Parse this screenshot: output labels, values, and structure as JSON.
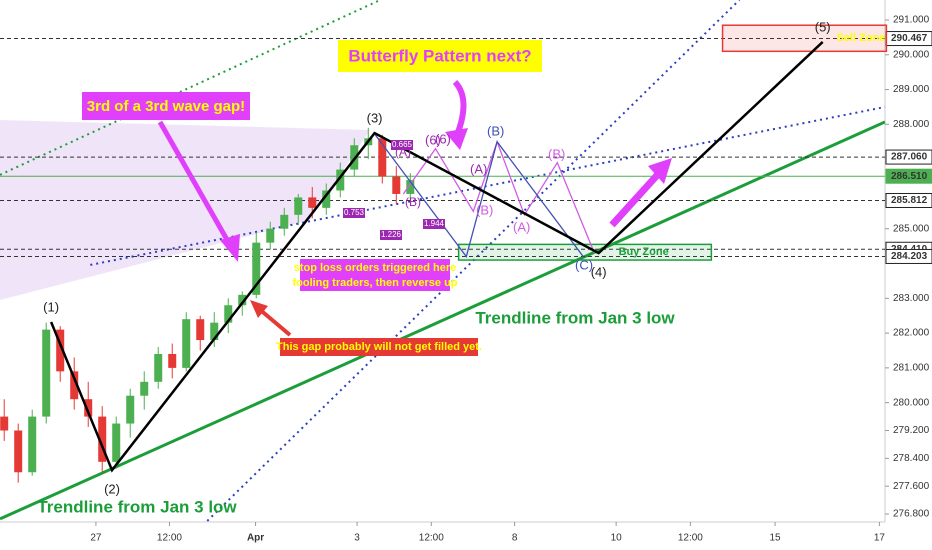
{
  "chart_data": {
    "type": "candlestick",
    "x": [
      0,
      2,
      4,
      6,
      8,
      10,
      12,
      14,
      16,
      18,
      20,
      22,
      24,
      26,
      28,
      30,
      32,
      34,
      36,
      38,
      40,
      42,
      44,
      46,
      48,
      50,
      52,
      54,
      56,
      58
    ],
    "open": [
      279.6,
      279.2,
      278.0,
      279.6,
      282.1,
      280.9,
      280.1,
      279.6,
      278.3,
      279.4,
      280.2,
      280.6,
      281.4,
      281.0,
      282.4,
      281.8,
      282.3,
      282.8,
      283.1,
      284.6,
      285.0,
      285.4,
      285.9,
      285.6,
      286.1,
      286.7,
      287.4,
      287.6,
      286.5,
      286.0
    ],
    "high": [
      280.1,
      279.4,
      279.8,
      282.3,
      282.2,
      281.3,
      280.6,
      279.9,
      279.6,
      280.4,
      280.9,
      281.6,
      281.7,
      282.6,
      282.5,
      282.6,
      283.0,
      283.2,
      284.9,
      285.2,
      285.6,
      286.0,
      286.2,
      286.3,
      286.9,
      287.6,
      287.9,
      287.7,
      286.8,
      286.6
    ],
    "low": [
      278.9,
      277.7,
      277.9,
      279.4,
      280.6,
      279.8,
      279.3,
      278.0,
      278.1,
      279.0,
      279.8,
      280.4,
      280.7,
      280.9,
      281.5,
      281.6,
      282.0,
      282.5,
      283.0,
      284.4,
      284.8,
      285.1,
      285.3,
      285.4,
      285.9,
      286.5,
      287.0,
      286.3,
      285.7,
      285.8
    ],
    "close": [
      279.2,
      278.0,
      279.6,
      282.1,
      280.9,
      280.1,
      279.6,
      278.3,
      279.4,
      280.2,
      280.6,
      281.4,
      281.0,
      282.4,
      281.8,
      282.3,
      282.8,
      283.1,
      284.6,
      285.0,
      285.4,
      285.9,
      285.6,
      286.1,
      286.7,
      287.4,
      287.6,
      286.5,
      286.0,
      286.4
    ],
    "up_color": "#4caf50",
    "down_color": "#e53935",
    "xlim": [
      -0.6,
      125.8
    ],
    "xticks": [
      {
        "value": 13.1,
        "label": "27"
      },
      {
        "value": 23.6,
        "label": "12:00"
      },
      {
        "value": 35.9,
        "label": "Apr"
      },
      {
        "value": 50.4,
        "label": "3"
      },
      {
        "value": 61,
        "label": "12:00"
      },
      {
        "value": 72.9,
        "label": "8"
      },
      {
        "value": 87.4,
        "label": "10"
      },
      {
        "value": 98,
        "label": "12:00"
      },
      {
        "value": 110.1,
        "label": "15"
      },
      {
        "value": 125,
        "label": "17"
      }
    ],
    "ylim": [
      276.57,
      291.575
    ],
    "yticks": [
      {
        "value": 291,
        "label": "291.000"
      },
      {
        "value": 290,
        "label": "290.000"
      },
      {
        "value": 289,
        "label": "289.000"
      },
      {
        "value": 288,
        "label": "288.000"
      },
      {
        "value": 285,
        "label": "285.000"
      },
      {
        "value": 283,
        "label": "283.000"
      },
      {
        "value": 282,
        "label": "282.000"
      },
      {
        "value": 281,
        "label": "281.000"
      },
      {
        "value": 280,
        "label": "280.000"
      },
      {
        "value": 279.2,
        "label": "279.200"
      },
      {
        "value": 278.4,
        "label": "278.400"
      },
      {
        "value": 277.6,
        "label": "277.600"
      },
      {
        "value": 276.8,
        "label": "276.800"
      }
    ],
    "levels": [
      {
        "value": 290.467,
        "label": "290.467"
      },
      {
        "value": 287.06,
        "label": "287.060"
      },
      {
        "value": 286.51,
        "label": "286.510"
      },
      {
        "value": 285.812,
        "label": "285.812"
      },
      {
        "value": 284.41,
        "label": "284.410"
      },
      {
        "value": 284.203,
        "label": "284.203"
      }
    ],
    "level_colors": [
      "#222",
      "#222",
      "#4caf50",
      "#222",
      "#222",
      "#222"
    ],
    "wave": {
      "color": "#000",
      "x": [
        6.7,
        15.4,
        52.9,
        84.9,
        116.9
      ],
      "values": [
        282.32,
        278.06,
        287.75,
        284.3,
        290.37
      ],
      "labels": [
        "(1)",
        "(2)",
        "(3)",
        "(4)",
        "(5)"
      ]
    },
    "projections": [
      {
        "color": "#d05ce3",
        "x": [
          57,
          61.6,
          67,
          70.4,
          74.3,
          79,
          84.3
        ],
        "values": [
          286.0,
          287.3,
          285.5,
          287.5,
          285.4,
          286.9,
          284.3
        ]
      },
      {
        "color": "#3f51b5",
        "x": [
          53,
          66,
          70.4,
          82.7
        ],
        "values": [
          287.7,
          284.2,
          287.5,
          284.2
        ]
      }
    ],
    "trendlines": [
      {
        "color": "#1b9e3a",
        "style": "solid",
        "x": [
          -0.6,
          125.8
        ],
        "values": [
          276.66,
          288.07
        ]
      },
      {
        "color": "#2a3fc0",
        "style": "dotted",
        "x": [
          12.3,
          125.8
        ],
        "values": [
          283.96,
          288.5
        ]
      },
      {
        "color": "#1b9e3a",
        "style": "dotted",
        "x": [
          -0.6,
          53.7
        ],
        "values": [
          286.55,
          291.575
        ]
      },
      {
        "color": "#2a3fc0",
        "style": "dotted",
        "x": [
          29,
          105
        ],
        "values": [
          276.6,
          291.575
        ]
      }
    ],
    "zones": [
      {
        "name": "Sell Zone",
        "color": "#e53935",
        "x": [
          102.6,
          126
        ],
        "range": [
          290.1,
          290.85
        ]
      },
      {
        "name": "Buy Zone",
        "color": "#1b9e3a",
        "x": [
          64.9,
          101
        ],
        "range": [
          284.1,
          284.55
        ]
      }
    ],
    "wave_labels": [
      "(6)",
      "(A)",
      "(B)",
      "(C)",
      "(4)"
    ],
    "fib_ratios": [
      0.665,
      0.753,
      1.226,
      1.944
    ],
    "annotations": {
      "butterfly": "Butterfly Pattern next?",
      "gap": "3rd of a 3rd wave gap!",
      "stoploss": [
        "stop loss orders triggered here",
        "fooling traders, then reverse up"
      ],
      "notfilled": "This gap probably will not get filled yet.",
      "trend": "Trendline from Jan 3 low"
    }
  }
}
